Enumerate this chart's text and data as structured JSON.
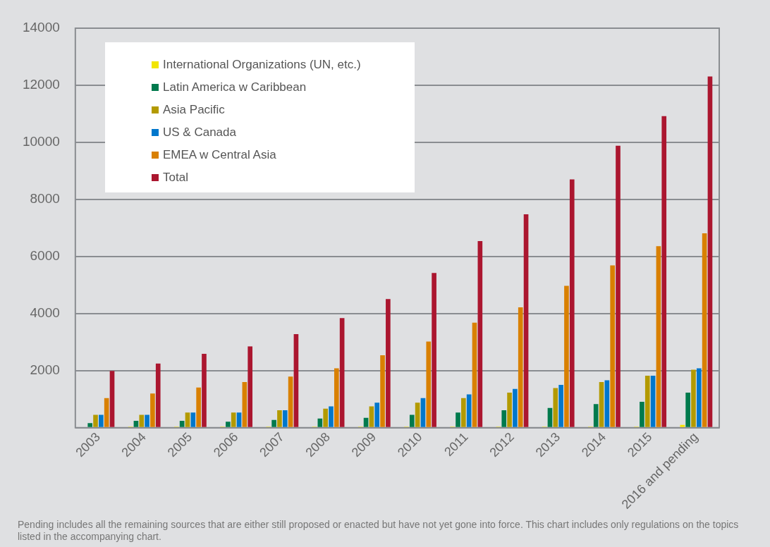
{
  "chart_data": {
    "type": "bar",
    "categories": [
      "2003",
      "2004",
      "2005",
      "2006",
      "2007",
      "2008",
      "2009",
      "2010",
      "2011",
      "2012",
      "2013",
      "2014",
      "2015",
      "2016 and pending"
    ],
    "series": [
      {
        "name": "International Organizations (UN, etc.)",
        "color": "#f2e500",
        "values": [
          0,
          40,
          40,
          40,
          40,
          40,
          40,
          40,
          40,
          40,
          40,
          40,
          40,
          100
        ]
      },
      {
        "name": "Latin America w Caribbean",
        "color": "#007a4d",
        "values": [
          160,
          240,
          240,
          210,
          270,
          320,
          350,
          450,
          530,
          610,
          690,
          830,
          910,
          1230
        ]
      },
      {
        "name": "Asia Pacific",
        "color": "#b39a00",
        "values": [
          450,
          450,
          530,
          530,
          610,
          670,
          750,
          880,
          1040,
          1230,
          1390,
          1600,
          1820,
          2030
        ]
      },
      {
        "name": "US & Canada",
        "color": "#0077cc",
        "values": [
          450,
          450,
          530,
          530,
          610,
          750,
          880,
          1040,
          1170,
          1360,
          1500,
          1660,
          1820,
          2080
        ]
      },
      {
        "name": "EMEA w Central Asia",
        "color": "#d98000",
        "values": [
          1040,
          1200,
          1410,
          1600,
          1790,
          2080,
          2540,
          3020,
          3680,
          4220,
          4970,
          5690,
          6360,
          6810
        ]
      },
      {
        "name": "Total",
        "color": "#ab162f",
        "values": [
          1990,
          2250,
          2590,
          2850,
          3280,
          3840,
          4510,
          5420,
          6540,
          7480,
          8700,
          9880,
          10920,
          12310
        ]
      }
    ],
    "ylim": [
      0,
      14000
    ],
    "yticks": [
      {
        "value": 0,
        "label": null
      },
      2000,
      4000,
      6000,
      8000,
      10000,
      12000,
      14000
    ],
    "grid": "y",
    "legend": "top left",
    "annotations": [
      "Pending includes all the remaining sources that are either still proposed or enacted but have not yet gone into force. This chart includes only regulations on the topics listed in the accompanying chart."
    ]
  }
}
